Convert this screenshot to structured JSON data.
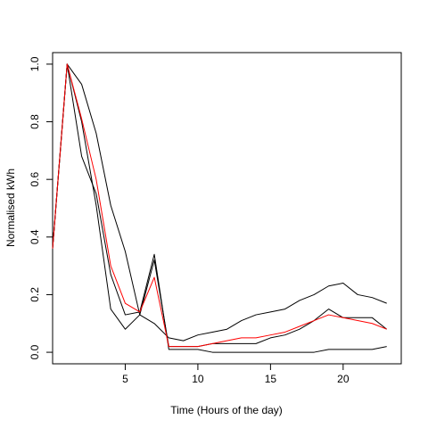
{
  "chart_data": {
    "type": "line",
    "title": "",
    "xlabel": "Time (Hours of the day)",
    "ylabel": "Normalised kWh",
    "xlim": [
      0,
      24
    ],
    "ylim": [
      -0.04,
      1.04
    ],
    "xticks": [
      5,
      10,
      15,
      20
    ],
    "yticks": [
      0.0,
      0.2,
      0.4,
      0.6,
      0.8,
      1.0
    ],
    "x_tick_labels": [
      "5",
      "10",
      "15",
      "20"
    ],
    "y_tick_labels": [
      "0.0",
      "0.2",
      "0.4",
      "0.6",
      "0.8",
      "1.0"
    ],
    "grid": false,
    "legend": "none",
    "x": [
      0,
      1,
      2,
      3,
      4,
      5,
      6,
      7,
      8,
      9,
      10,
      11,
      12,
      13,
      14,
      15,
      16,
      17,
      18,
      19,
      20,
      21,
      22,
      23
    ],
    "series": [
      {
        "color": "#000000",
        "values": [
          0.36,
          1.0,
          0.93,
          0.76,
          0.51,
          0.35,
          0.13,
          0.1,
          0.05,
          0.04,
          0.06,
          0.07,
          0.08,
          0.11,
          0.13,
          0.14,
          0.15,
          0.18,
          0.2,
          0.23,
          0.24,
          0.2,
          0.19,
          0.17
        ]
      },
      {
        "color": "#000000",
        "values": [
          0.36,
          1.0,
          0.68,
          0.55,
          0.27,
          0.13,
          0.14,
          0.34,
          0.01,
          0.01,
          0.01,
          0.0,
          0.0,
          0.0,
          0.0,
          0.0,
          0.0,
          0.0,
          0.0,
          0.01,
          0.01,
          0.01,
          0.01,
          0.02
        ]
      },
      {
        "color": "#000000",
        "values": [
          0.36,
          1.0,
          0.8,
          0.51,
          0.15,
          0.08,
          0.13,
          0.32,
          0.02,
          0.02,
          0.02,
          0.03,
          0.03,
          0.03,
          0.03,
          0.05,
          0.06,
          0.08,
          0.11,
          0.15,
          0.12,
          0.12,
          0.12,
          0.08
        ]
      },
      {
        "color": "#ff0000",
        "values": [
          0.36,
          1.0,
          0.81,
          0.6,
          0.3,
          0.17,
          0.14,
          0.26,
          0.02,
          0.02,
          0.02,
          0.03,
          0.04,
          0.05,
          0.05,
          0.06,
          0.07,
          0.09,
          0.11,
          0.13,
          0.12,
          0.11,
          0.1,
          0.08
        ]
      }
    ]
  }
}
